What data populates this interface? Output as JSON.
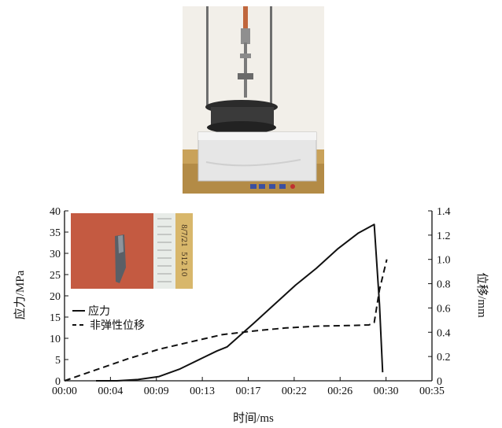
{
  "chart_data": {
    "type": "line",
    "xlabel": "时间/ms",
    "ylabel": "应力/MPa",
    "y2label": "位移/mm",
    "x_ticks": [
      "00:00",
      "00:04",
      "00:09",
      "00:13",
      "00:17",
      "00:22",
      "00:26",
      "00:30",
      "00:35"
    ],
    "y_ticks": [
      "0",
      "5",
      "10",
      "15",
      "20",
      "25",
      "30",
      "35",
      "40"
    ],
    "y2_ticks": [
      "0",
      "0.2",
      "0.4",
      "0.6",
      "0.8",
      "1.0",
      "1.2",
      "1.4"
    ],
    "xlim": [
      0,
      35
    ],
    "ylim": [
      0,
      40
    ],
    "y2lim": [
      0,
      1.4
    ],
    "grid": false,
    "legend_position": "lower-left",
    "series": [
      {
        "name": "应力",
        "style": "solid",
        "axis": "left",
        "x": [
          3,
          5,
          7,
          9,
          11,
          13,
          14.5,
          15.5,
          18,
          20,
          22,
          24,
          26,
          28,
          29.5,
          30,
          30.3
        ],
        "y": [
          0,
          0,
          0.3,
          1,
          2.8,
          5.2,
          7,
          8,
          13.5,
          18,
          22.5,
          26.5,
          31,
          34.8,
          36.8,
          18,
          2
        ]
      },
      {
        "name": "非弹性位移",
        "style": "dashed",
        "axis": "right",
        "x": [
          0,
          3,
          6,
          9,
          12,
          15,
          18,
          21,
          24,
          27,
          29,
          29.5,
          30,
          30.7
        ],
        "y": [
          0,
          0.09,
          0.18,
          0.26,
          0.32,
          0.38,
          0.41,
          0.435,
          0.45,
          0.455,
          0.46,
          0.48,
          0.75,
          1.0
        ]
      }
    ]
  },
  "inset_photo": {
    "label_texts": [
      "8/7/21",
      "512 10"
    ]
  }
}
